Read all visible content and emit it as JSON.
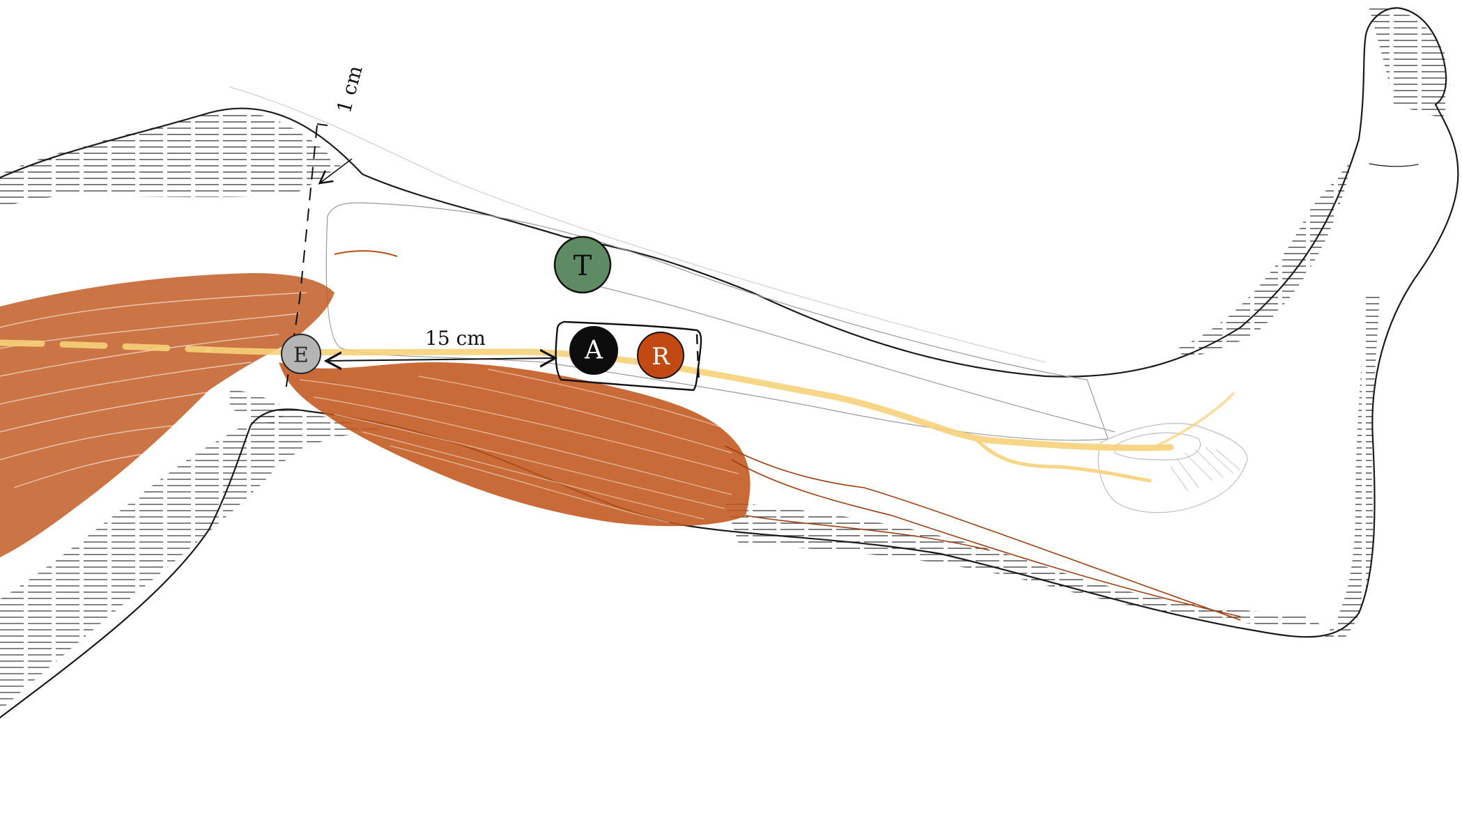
{
  "diagram": {
    "markers": {
      "E": {
        "label": "E",
        "color": "#b5b5b5",
        "text_color": "#222222"
      },
      "T": {
        "label": "T",
        "color": "#5e8b63",
        "text_color": "#111111"
      },
      "A": {
        "label": "A",
        "color": "#0c0c0c",
        "text_color": "#ffffff"
      },
      "R": {
        "label": "R",
        "color": "#c24a12",
        "text_color": "#ffffff"
      }
    },
    "dimensions": {
      "horizontal": "15 cm",
      "vertical": "1 cm"
    },
    "colors": {
      "muscle": "#c0561c",
      "nerve": "#f7d27a",
      "outline": "#1a1a1a",
      "hatch": "#333333"
    }
  }
}
